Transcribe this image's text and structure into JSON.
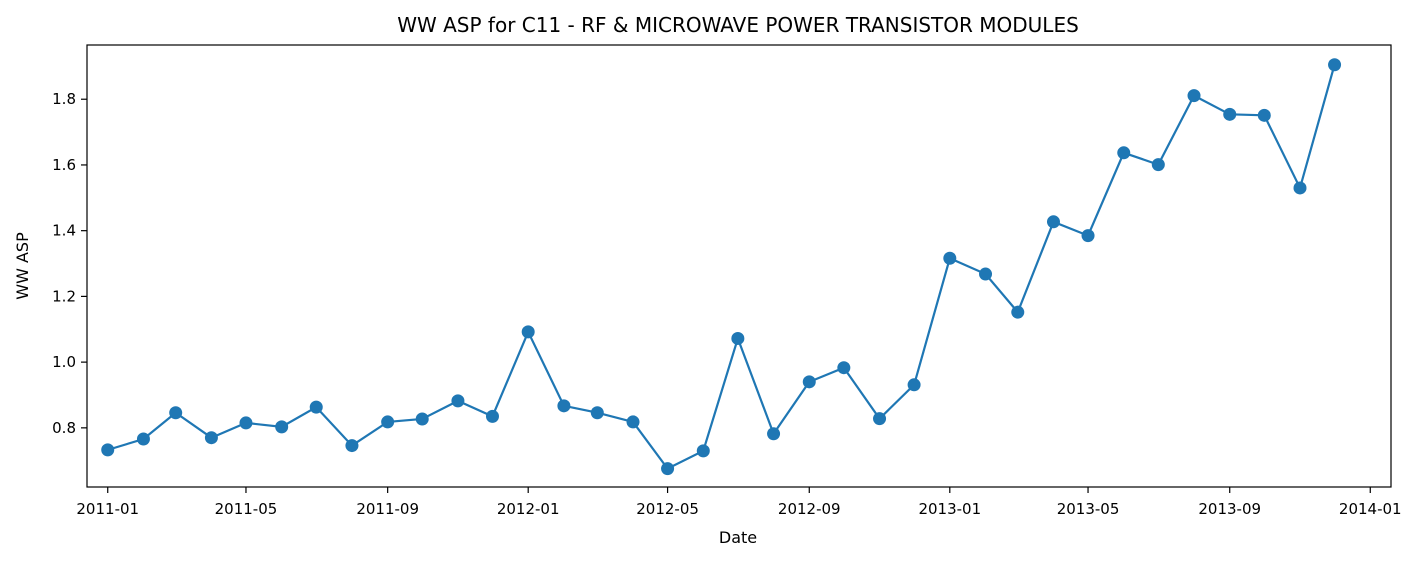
{
  "chart_data": {
    "type": "line",
    "title": "WW ASP for C11 - RF & MICROWAVE POWER TRANSISTOR MODULES",
    "xlabel": "Date",
    "ylabel": "WW ASP",
    "x_ticks": [
      "2011-01",
      "2011-05",
      "2011-09",
      "2012-01",
      "2012-05",
      "2012-09",
      "2013-01",
      "2013-05",
      "2013-09",
      "2014-01"
    ],
    "y_ticks": [
      "0.8",
      "1.0",
      "1.2",
      "1.4",
      "1.6",
      "1.8"
    ],
    "xlim": [
      "2010-12-14",
      "2014-01-19"
    ],
    "ylim": [
      0.62,
      1.965
    ],
    "grid": false,
    "colors": {
      "series": "#1f77b4"
    },
    "series": [
      {
        "x": [
          "2011-01-01",
          "2011-02-01",
          "2011-03-01",
          "2011-04-01",
          "2011-05-01",
          "2011-06-01",
          "2011-07-01",
          "2011-08-01",
          "2011-09-01",
          "2011-10-01",
          "2011-11-01",
          "2011-12-01",
          "2012-01-01",
          "2012-02-01",
          "2012-03-01",
          "2012-04-01",
          "2012-05-01",
          "2012-06-01",
          "2012-07-01",
          "2012-08-01",
          "2012-09-01",
          "2012-10-01",
          "2012-11-01",
          "2012-12-01",
          "2013-01-01",
          "2013-02-01",
          "2013-03-01",
          "2013-04-01",
          "2013-05-01",
          "2013-06-01",
          "2013-07-01",
          "2013-08-01",
          "2013-09-01",
          "2013-10-01",
          "2013-11-01",
          "2013-12-01"
        ],
        "values": [
          0.733,
          0.766,
          0.846,
          0.77,
          0.815,
          0.803,
          0.863,
          0.746,
          0.818,
          0.827,
          0.882,
          0.835,
          1.092,
          0.867,
          0.846,
          0.818,
          0.676,
          0.73,
          1.072,
          0.782,
          0.94,
          0.983,
          0.828,
          0.931,
          1.316,
          1.268,
          1.152,
          1.427,
          1.385,
          1.637,
          1.601,
          1.811,
          1.754,
          1.751,
          1.53,
          1.905
        ]
      }
    ]
  }
}
